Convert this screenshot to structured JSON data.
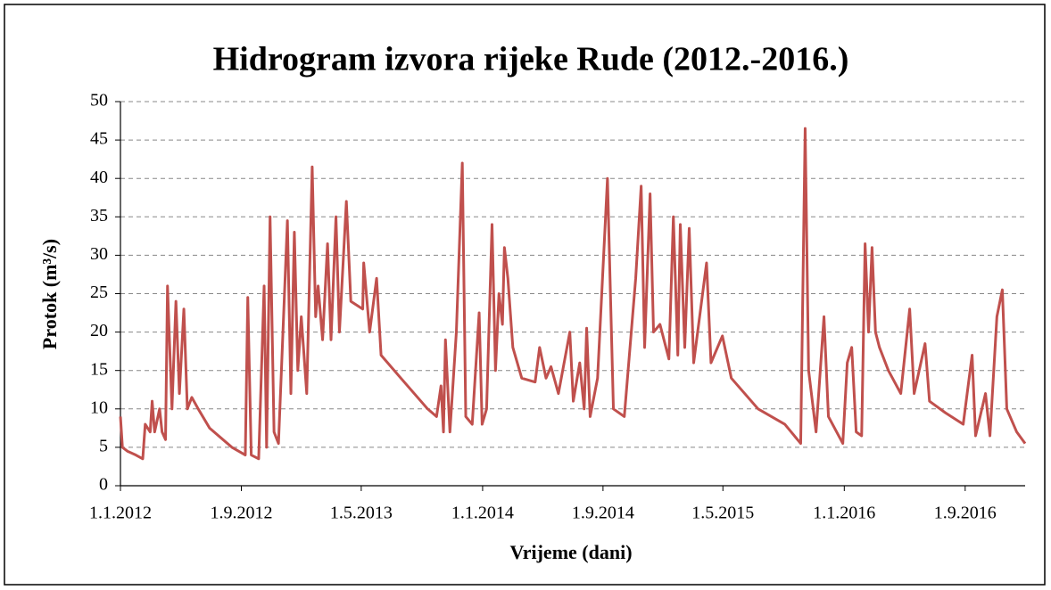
{
  "chart_data": {
    "type": "line",
    "title": "Hidrogram izvora rijeke Rude (2012.-2016.)",
    "x_label": "Vrijeme (dani)",
    "y_label": "Protok (m³/s)",
    "color": "#c0504d",
    "grid": true,
    "xlim": [
      "2012-01-01",
      "2016-12-31"
    ],
    "xticks": [
      {
        "value": "2012-01-01",
        "label": "1.1.2012"
      },
      {
        "value": "2012-09-01",
        "label": "1.9.2012"
      },
      {
        "value": "2013-05-01",
        "label": "1.5.2013"
      },
      {
        "value": "2014-01-01",
        "label": "1.1.2014"
      },
      {
        "value": "2014-09-01",
        "label": "1.9.2014"
      },
      {
        "value": "2015-05-01",
        "label": "1.5.2015"
      },
      {
        "value": "2016-01-01",
        "label": "1.1.2016"
      },
      {
        "value": "2016-09-01",
        "label": "1.9.2016"
      }
    ],
    "ylim": [
      0,
      50
    ],
    "yticks": [
      0,
      5,
      10,
      15,
      20,
      25,
      30,
      35,
      40,
      45,
      50
    ],
    "x": [
      "2012-01-01",
      "2012-01-05",
      "2012-01-15",
      "2012-02-01",
      "2012-02-15",
      "2012-02-20",
      "2012-03-01",
      "2012-03-05",
      "2012-03-10",
      "2012-03-20",
      "2012-03-25",
      "2012-04-01",
      "2012-04-05",
      "2012-04-14",
      "2012-04-22",
      "2012-04-29",
      "2012-05-08",
      "2012-05-15",
      "2012-05-24",
      "2012-06-06",
      "2012-06-29",
      "2012-08-13",
      "2012-09-09",
      "2012-09-14",
      "2012-09-21",
      "2012-10-06",
      "2012-10-17",
      "2012-10-22",
      "2012-10-29",
      "2012-11-06",
      "2012-11-15",
      "2012-12-03",
      "2012-12-10",
      "2012-12-17",
      "2012-12-24",
      "2012-12-31",
      "2013-01-11",
      "2013-01-22",
      "2013-01-29",
      "2013-02-03",
      "2013-02-12",
      "2013-02-22",
      "2013-03-01",
      "2013-03-11",
      "2013-03-18",
      "2013-04-01",
      "2013-04-10",
      "2013-05-04",
      "2013-05-06",
      "2013-05-18",
      "2013-06-01",
      "2013-06-10",
      "2013-07-20",
      "2013-09-12",
      "2013-09-30",
      "2013-10-09",
      "2013-10-14",
      "2013-10-18",
      "2013-10-27",
      "2013-11-09",
      "2013-11-21",
      "2013-11-28",
      "2013-12-11",
      "2013-12-25",
      "2013-12-31",
      "2014-01-09",
      "2014-01-20",
      "2014-01-27",
      "2014-02-03",
      "2014-02-10",
      "2014-02-14",
      "2014-02-21",
      "2014-03-03",
      "2014-03-21",
      "2014-04-17",
      "2014-04-26",
      "2014-05-09",
      "2014-05-19",
      "2014-06-03",
      "2014-06-26",
      "2014-07-03",
      "2014-07-16",
      "2014-07-25",
      "2014-07-30",
      "2014-08-06",
      "2014-08-21",
      "2014-09-10",
      "2014-09-22",
      "2014-10-14",
      "2014-11-06",
      "2014-11-17",
      "2014-11-24",
      "2014-12-05",
      "2014-12-12",
      "2014-12-25",
      "2015-01-12",
      "2015-01-21",
      "2015-01-30",
      "2015-02-04",
      "2015-02-13",
      "2015-02-22",
      "2015-03-03",
      "2015-03-29",
      "2015-04-07",
      "2015-04-30",
      "2015-05-18",
      "2015-07-11",
      "2015-09-03",
      "2015-10-05",
      "2015-10-14",
      "2015-10-21",
      "2015-11-05",
      "2015-11-21",
      "2015-11-30",
      "2015-12-29",
      "2016-01-07",
      "2016-01-16",
      "2016-01-25",
      "2016-02-05",
      "2016-02-12",
      "2016-02-19",
      "2016-02-26",
      "2016-03-04",
      "2016-03-12",
      "2016-03-30",
      "2016-04-24",
      "2016-05-12",
      "2016-05-21",
      "2016-06-12",
      "2016-06-21",
      "2016-07-23",
      "2016-08-28",
      "2016-09-15",
      "2016-09-22",
      "2016-10-12",
      "2016-10-21",
      "2016-11-04",
      "2016-11-15",
      "2016-11-24",
      "2016-12-14",
      "2016-12-31"
    ],
    "values": [
      9,
      5,
      4.5,
      4,
      3.5,
      8,
      7,
      11,
      7,
      10,
      7,
      6,
      26,
      10,
      24,
      12,
      23,
      10,
      11.5,
      10,
      7.5,
      5,
      4,
      24.5,
      4,
      3.5,
      26,
      5,
      35,
      7,
      5.5,
      34.5,
      12,
      33,
      15,
      22,
      12,
      41.5,
      22,
      26,
      19,
      31.5,
      19,
      35,
      20,
      37,
      24,
      23,
      29,
      20,
      27,
      17,
      14,
      10,
      9,
      13,
      7,
      19,
      7,
      20,
      42,
      9,
      8,
      22.5,
      8,
      10,
      34,
      15,
      25,
      21,
      31,
      27,
      18,
      14,
      13.5,
      18,
      14,
      15.5,
      12,
      20,
      11,
      16,
      10,
      20.5,
      9,
      14,
      40,
      10,
      9,
      27,
      39,
      18,
      38,
      20,
      21,
      16.5,
      35,
      17,
      34,
      18,
      33.5,
      16,
      29,
      16,
      19.5,
      14,
      10,
      8,
      5.5,
      46.5,
      15,
      7,
      22,
      9,
      5.5,
      16,
      18,
      7,
      6.5,
      31.5,
      20,
      31,
      20,
      18,
      15,
      12,
      23,
      12,
      18.5,
      11,
      9.5,
      8,
      17,
      6.5,
      12,
      6.5,
      22,
      25.5,
      10,
      7,
      5.5
    ]
  }
}
